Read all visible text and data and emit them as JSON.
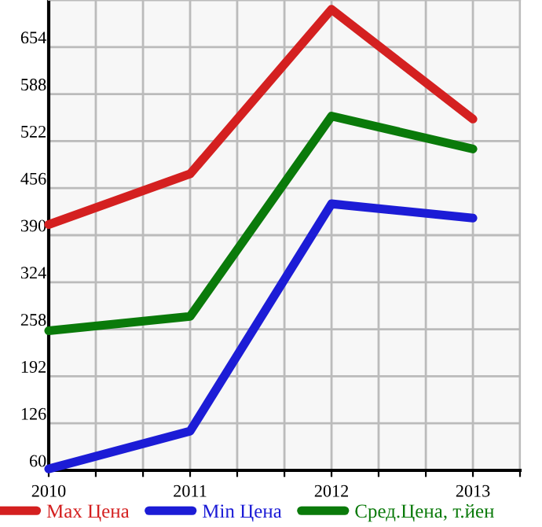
{
  "chart_data": {
    "type": "line",
    "x": [
      2010,
      2011,
      2012,
      2013
    ],
    "series": [
      {
        "name": "Max Цена",
        "color": "#d42020",
        "values": [
          405,
          476,
          707,
          553
        ]
      },
      {
        "name": "Min Цена",
        "color": "#1c1cd6",
        "values": [
          62,
          115,
          434,
          414
        ]
      },
      {
        "name": "Сред.Цена, т.йен",
        "color": "#0a7a0a",
        "values": [
          256,
          276,
          557,
          511
        ]
      }
    ],
    "xlim": [
      2010,
      2013.333
    ],
    "xticks": [
      2010,
      {
        "value": 2010.333,
        "label": null
      },
      {
        "value": 2010.667,
        "label": null
      },
      2011,
      {
        "value": 2011.333,
        "label": null
      },
      {
        "value": 2011.667,
        "label": null
      },
      2012,
      {
        "value": 2012.333,
        "label": null
      },
      {
        "value": 2012.667,
        "label": null
      },
      2013,
      {
        "value": 2013.333,
        "label": null
      }
    ],
    "ylim": [
      60,
      720
    ],
    "yticks": [
      60,
      126,
      192,
      258,
      324,
      390,
      456,
      522,
      588,
      654,
      {
        "value": 720,
        "label": null
      }
    ],
    "grid": true,
    "legend": "bottom",
    "marker": "none",
    "line_style": "solid"
  }
}
